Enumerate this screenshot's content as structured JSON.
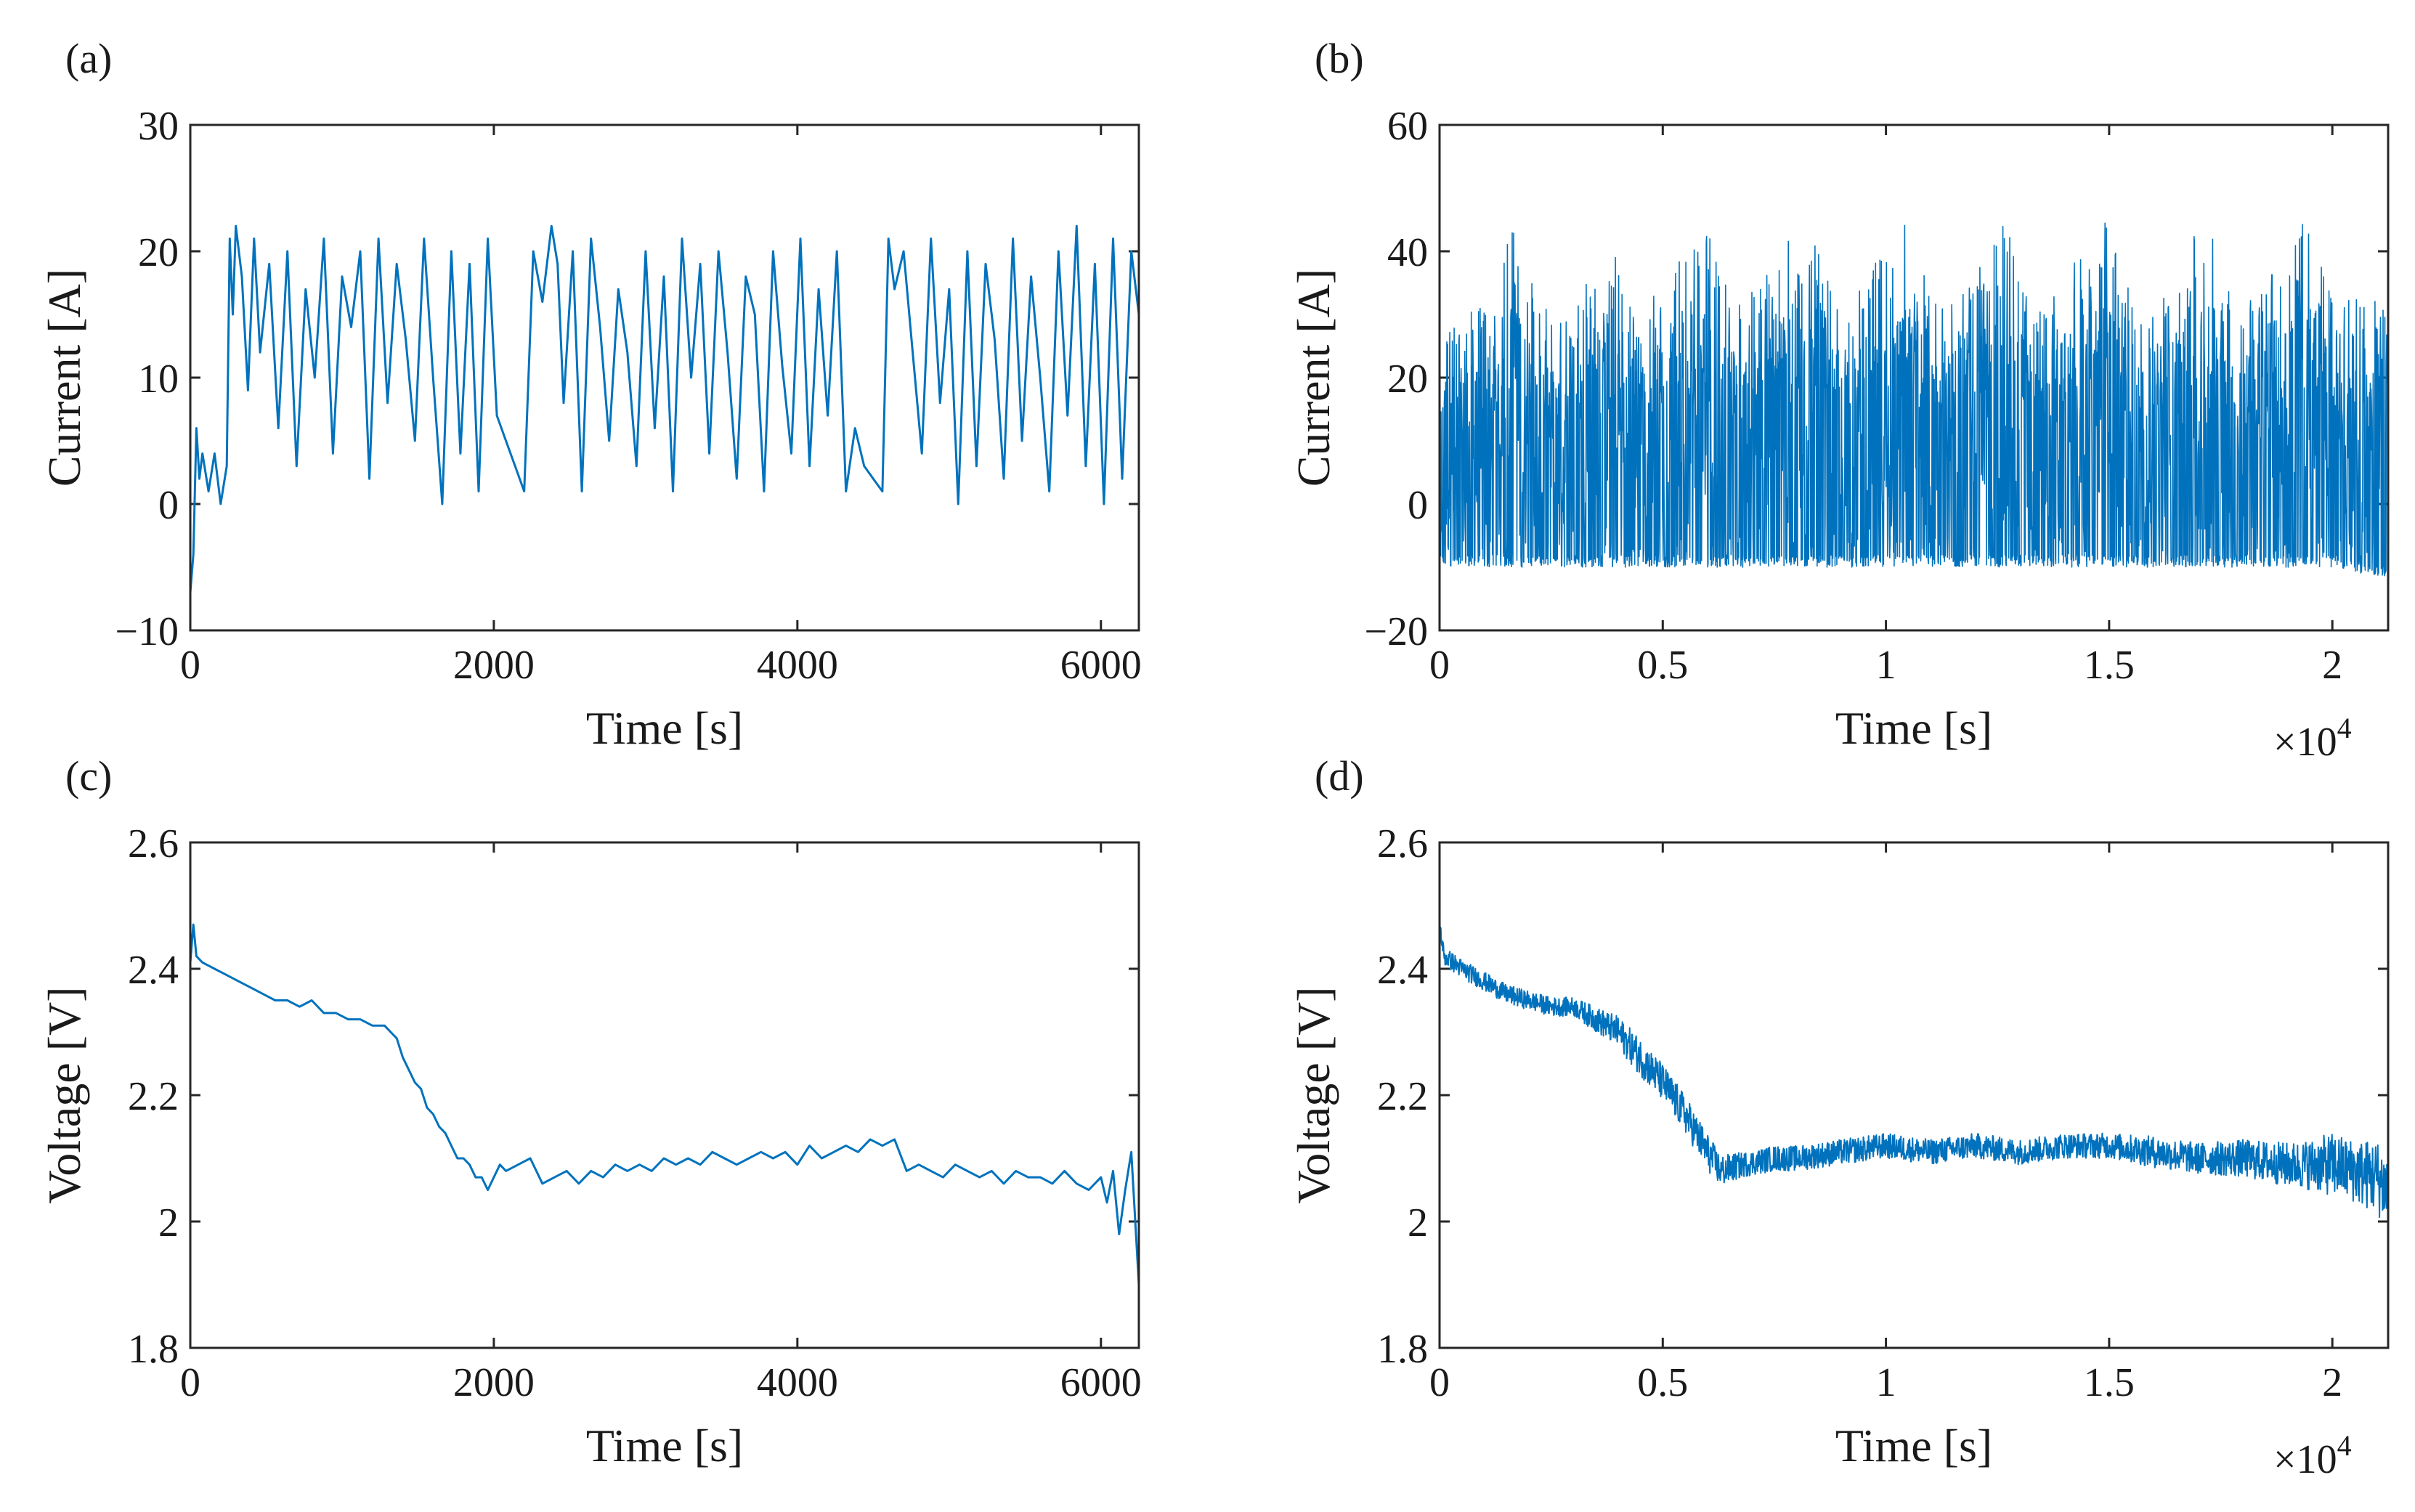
{
  "figure": {
    "background": "#ffffff"
  },
  "chart_data": [
    {
      "id": "a",
      "panel_label": "(a)",
      "type": "line",
      "xlabel": "Time [s]",
      "ylabel": "Current [A]",
      "xlim": [
        0,
        6250
      ],
      "ylim": [
        -10,
        30
      ],
      "xticks": [
        0,
        2000,
        4000,
        6000
      ],
      "xtick_labels": [
        "0",
        "2000",
        "4000",
        "6000"
      ],
      "yticks": [
        -10,
        0,
        10,
        20,
        30
      ],
      "ytick_labels": [
        "−10",
        "0",
        "10",
        "20",
        "30"
      ],
      "x_exponent_label": "",
      "grid": false,
      "series": [
        {
          "color": "#0072BD",
          "x": [
            0,
            20,
            40,
            60,
            80,
            120,
            160,
            200,
            240,
            260,
            280,
            300,
            340,
            380,
            420,
            460,
            520,
            580,
            640,
            700,
            760,
            820,
            880,
            940,
            1000,
            1060,
            1120,
            1180,
            1240,
            1300,
            1360,
            1420,
            1480,
            1540,
            1600,
            1660,
            1720,
            1780,
            1840,
            1900,
            1960,
            2020,
            2080,
            2140,
            2200,
            2260,
            2320,
            2380,
            2420,
            2460,
            2520,
            2580,
            2640,
            2700,
            2760,
            2820,
            2880,
            2940,
            3000,
            3060,
            3120,
            3180,
            3240,
            3300,
            3360,
            3420,
            3480,
            3540,
            3600,
            3660,
            3720,
            3780,
            3840,
            3900,
            3960,
            4020,
            4080,
            4140,
            4200,
            4260,
            4320,
            4380,
            4440,
            4500,
            4560,
            4600,
            4640,
            4700,
            4760,
            4820,
            4880,
            4940,
            5000,
            5060,
            5120,
            5180,
            5240,
            5300,
            5360,
            5420,
            5480,
            5540,
            5600,
            5660,
            5720,
            5780,
            5840,
            5900,
            5960,
            6020,
            6080,
            6140,
            6200,
            6250
          ],
          "y": [
            -7,
            -4,
            6,
            2,
            4,
            1,
            4,
            0,
            3,
            21,
            15,
            22,
            18,
            9,
            21,
            12,
            19,
            6,
            20,
            3,
            17,
            10,
            21,
            4,
            18,
            14,
            20,
            2,
            21,
            8,
            19,
            13,
            5,
            21,
            10,
            0,
            20,
            4,
            19,
            1,
            21,
            7,
            5,
            3,
            1,
            20,
            16,
            22,
            19,
            8,
            20,
            1,
            21,
            14,
            5,
            17,
            12,
            3,
            20,
            6,
            18,
            1,
            21,
            10,
            19,
            4,
            20,
            12,
            2,
            18,
            15,
            1,
            20,
            11,
            4,
            21,
            3,
            17,
            7,
            20,
            1,
            6,
            3,
            2,
            1,
            21,
            17,
            20,
            12,
            4,
            21,
            8,
            17,
            0,
            20,
            3,
            19,
            13,
            2,
            21,
            5,
            18,
            10,
            1,
            20,
            7,
            22,
            3,
            19,
            0,
            21,
            2,
            20,
            15
          ]
        }
      ]
    },
    {
      "id": "b",
      "panel_label": "(b)",
      "type": "line",
      "xlabel": "Time [s]",
      "ylabel": "Current [A]",
      "xlim": [
        0,
        21250
      ],
      "ylim": [
        -20,
        60
      ],
      "xticks": [
        0,
        5000,
        10000,
        15000,
        20000
      ],
      "xtick_labels": [
        "0",
        "0.5",
        "1",
        "1.5",
        "2"
      ],
      "yticks": [
        -20,
        0,
        20,
        40,
        60
      ],
      "ytick_labels": [
        "−20",
        "0",
        "20",
        "40",
        "60"
      ],
      "x_exponent_label": "×10",
      "x_exponent_power": "4",
      "grid": false,
      "series": [
        {
          "color": "#0072BD",
          "x_start": 0,
          "x_end": 21250,
          "x_period": 2230,
          "y_band_envelope": [
            [
              0,
              -10,
              27
            ],
            [
              600,
              -10,
              30
            ],
            [
              1100,
              -10,
              33
            ],
            [
              1600,
              -10,
              45
            ],
            [
              2230,
              -10,
              32
            ],
            [
              2700,
              -10,
              29
            ],
            [
              3800,
              -10,
              44
            ],
            [
              4400,
              -10,
              31
            ],
            [
              6000,
              -10,
              45
            ],
            [
              6700,
              -10,
              32
            ],
            [
              8200,
              -10,
              45
            ],
            [
              9000,
              -10,
              30
            ],
            [
              10400,
              -10,
              45
            ],
            [
              11200,
              -10,
              31
            ],
            [
              12700,
              -10,
              45
            ],
            [
              13400,
              -10,
              30
            ],
            [
              14900,
              -10,
              45
            ],
            [
              15700,
              -10,
              32
            ],
            [
              17200,
              -10,
              45
            ],
            [
              17900,
              -10,
              30
            ],
            [
              19400,
              -10,
              45
            ],
            [
              20100,
              -10,
              32
            ],
            [
              21250,
              -12,
              33
            ]
          ]
        }
      ]
    },
    {
      "id": "c",
      "panel_label": "(c)",
      "type": "line",
      "xlabel": "Time [s]",
      "ylabel": "Voltage [V]",
      "xlim": [
        0,
        6250
      ],
      "ylim": [
        1.8,
        2.6
      ],
      "xticks": [
        0,
        2000,
        4000,
        6000
      ],
      "xtick_labels": [
        "0",
        "2000",
        "4000",
        "6000"
      ],
      "yticks": [
        1.8,
        2.0,
        2.2,
        2.4,
        2.6
      ],
      "ytick_labels": [
        "1.8",
        "2",
        "2.2",
        "2.4",
        "2.6"
      ],
      "x_exponent_label": "",
      "grid": false,
      "series": [
        {
          "color": "#0072BD",
          "x": [
            0,
            20,
            40,
            80,
            160,
            240,
            320,
            400,
            480,
            560,
            640,
            720,
            800,
            880,
            960,
            1040,
            1120,
            1200,
            1280,
            1320,
            1360,
            1400,
            1440,
            1480,
            1520,
            1560,
            1600,
            1640,
            1680,
            1720,
            1760,
            1800,
            1840,
            1880,
            1920,
            1960,
            2000,
            2040,
            2080,
            2160,
            2240,
            2320,
            2400,
            2480,
            2560,
            2640,
            2720,
            2800,
            2880,
            2960,
            3040,
            3120,
            3200,
            3280,
            3360,
            3440,
            3520,
            3600,
            3680,
            3760,
            3840,
            3920,
            4000,
            4080,
            4160,
            4240,
            4320,
            4400,
            4480,
            4560,
            4640,
            4720,
            4800,
            4880,
            4960,
            5040,
            5120,
            5200,
            5280,
            5360,
            5440,
            5520,
            5600,
            5680,
            5760,
            5840,
            5920,
            6000,
            6040,
            6080,
            6120,
            6160,
            6200,
            6250
          ],
          "y": [
            2.41,
            2.47,
            2.42,
            2.41,
            2.4,
            2.39,
            2.38,
            2.37,
            2.36,
            2.35,
            2.35,
            2.34,
            2.35,
            2.33,
            2.33,
            2.32,
            2.32,
            2.31,
            2.31,
            2.3,
            2.29,
            2.26,
            2.24,
            2.22,
            2.21,
            2.18,
            2.17,
            2.15,
            2.14,
            2.12,
            2.1,
            2.1,
            2.09,
            2.07,
            2.07,
            2.05,
            2.07,
            2.09,
            2.08,
            2.09,
            2.1,
            2.06,
            2.07,
            2.08,
            2.06,
            2.08,
            2.07,
            2.09,
            2.08,
            2.09,
            2.08,
            2.1,
            2.09,
            2.1,
            2.09,
            2.11,
            2.1,
            2.09,
            2.1,
            2.11,
            2.1,
            2.11,
            2.09,
            2.12,
            2.1,
            2.11,
            2.12,
            2.11,
            2.13,
            2.12,
            2.13,
            2.08,
            2.09,
            2.08,
            2.07,
            2.09,
            2.08,
            2.07,
            2.08,
            2.06,
            2.08,
            2.07,
            2.07,
            2.06,
            2.08,
            2.06,
            2.05,
            2.07,
            2.03,
            2.08,
            1.98,
            2.05,
            2.11,
            1.9
          ]
        }
      ]
    },
    {
      "id": "d",
      "panel_label": "(d)",
      "type": "line",
      "xlabel": "Time [s]",
      "ylabel": "Voltage [V]",
      "xlim": [
        0,
        21250
      ],
      "ylim": [
        1.8,
        2.6
      ],
      "xticks": [
        0,
        5000,
        10000,
        15000,
        20000
      ],
      "xtick_labels": [
        "0",
        "0.5",
        "1",
        "1.5",
        "2"
      ],
      "yticks": [
        1.8,
        2.0,
        2.2,
        2.4,
        2.6
      ],
      "ytick_labels": [
        "1.8",
        "2",
        "2.2",
        "2.4",
        "2.6"
      ],
      "x_exponent_label": "×10",
      "x_exponent_power": "4",
      "grid": false,
      "series": [
        {
          "color": "#0072BD",
          "x": [
            0,
            100,
            500,
            1000,
            1500,
            2000,
            2500,
            3000,
            3500,
            4000,
            4500,
            5000,
            5500,
            6000,
            6300,
            6800,
            7500,
            8000,
            9000,
            10000,
            11000,
            12000,
            13000,
            14000,
            15000,
            16000,
            17000,
            18000,
            19000,
            19500,
            20000,
            20500,
            21000,
            21250
          ],
          "y": [
            2.47,
            2.42,
            2.4,
            2.38,
            2.36,
            2.35,
            2.34,
            2.34,
            2.32,
            2.3,
            2.26,
            2.22,
            2.17,
            2.11,
            2.08,
            2.09,
            2.1,
            2.1,
            2.11,
            2.12,
            2.11,
            2.12,
            2.11,
            2.12,
            2.12,
            2.11,
            2.1,
            2.1,
            2.09,
            2.09,
            2.09,
            2.08,
            2.07,
            2.05
          ],
          "noise_amplitude": [
            0.01,
            0.015,
            0.015,
            0.015,
            0.015,
            0.015,
            0.015,
            0.015,
            0.02,
            0.025,
            0.03,
            0.03,
            0.03,
            0.03,
            0.025,
            0.02,
            0.02,
            0.02,
            0.02,
            0.02,
            0.02,
            0.02,
            0.02,
            0.02,
            0.02,
            0.025,
            0.025,
            0.03,
            0.035,
            0.04,
            0.05,
            0.05,
            0.06,
            0.06
          ]
        }
      ]
    }
  ]
}
